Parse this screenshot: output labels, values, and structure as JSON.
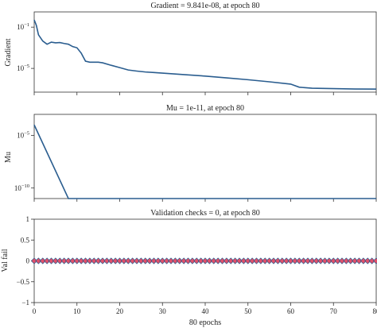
{
  "chart_data": [
    {
      "type": "line",
      "title": "Gradient = 9.841e-08, at epoch 80",
      "ylabel": "Gradient",
      "yscale": "log",
      "ylim": [
        5e-08,
        3
      ],
      "xlim": [
        0,
        80
      ],
      "yticks": [
        {
          "value": 0.1,
          "base": "10",
          "exp": "−1"
        },
        {
          "value": 1e-05,
          "base": "10",
          "exp": "−5"
        }
      ],
      "x": [
        0,
        0.5,
        1,
        2,
        3,
        4,
        5,
        6,
        7,
        8,
        9,
        10,
        11,
        12,
        13,
        14,
        15,
        16,
        18,
        20,
        22,
        24,
        26,
        28,
        30,
        35,
        40,
        45,
        50,
        55,
        60,
        62,
        65,
        70,
        75,
        80
      ],
      "y": [
        0.5,
        0.15,
        0.018,
        0.0045,
        0.0022,
        0.0035,
        0.003,
        0.0032,
        0.0026,
        0.0022,
        0.0013,
        0.001,
        0.0003,
        5e-05,
        4e-05,
        4e-05,
        4e-05,
        3.5e-05,
        2e-05,
        1.2e-05,
        7e-06,
        5.5e-06,
        4.5e-06,
        4e-06,
        3.5e-06,
        2.5e-06,
        1.8e-06,
        1.2e-06,
        8e-07,
        5e-07,
        3e-07,
        1.5e-07,
        1.2e-07,
        1.1e-07,
        1e-07,
        9.841e-08
      ]
    },
    {
      "type": "line",
      "title": "Mu = 1e-11, at epoch 80",
      "ylabel": "Mu",
      "yscale": "log",
      "ylim": [
        1e-11,
        0.001
      ],
      "xlim": [
        0,
        80
      ],
      "yticks": [
        {
          "value": 1e-05,
          "base": "10",
          "exp": "−5"
        },
        {
          "value": 1e-10,
          "base": "10",
          "exp": "−10"
        }
      ],
      "x": [
        0,
        8,
        80
      ],
      "y": [
        0.0001,
        1e-11,
        1e-11
      ]
    },
    {
      "type": "line",
      "title": "Validation checks = 0, at epoch 80",
      "ylabel": "Val fail",
      "xlabel": "80 epochs",
      "xlim": [
        0,
        80
      ],
      "ylim": [
        -1,
        1
      ],
      "yticks": [
        {
          "value": -1,
          "label": "−1"
        },
        {
          "value": -0.5,
          "label": "−0.5"
        },
        {
          "value": 0,
          "label": "0"
        },
        {
          "value": 0.5,
          "label": "0.5"
        },
        {
          "value": 1,
          "label": "1"
        }
      ],
      "xticks": [
        "0",
        "10",
        "20",
        "30",
        "40",
        "50",
        "60",
        "70",
        "80"
      ],
      "markers": "diamond",
      "marker_color": "#e0506a",
      "line_color": "#2a5d8f",
      "points_count": 81,
      "value": 0
    }
  ]
}
